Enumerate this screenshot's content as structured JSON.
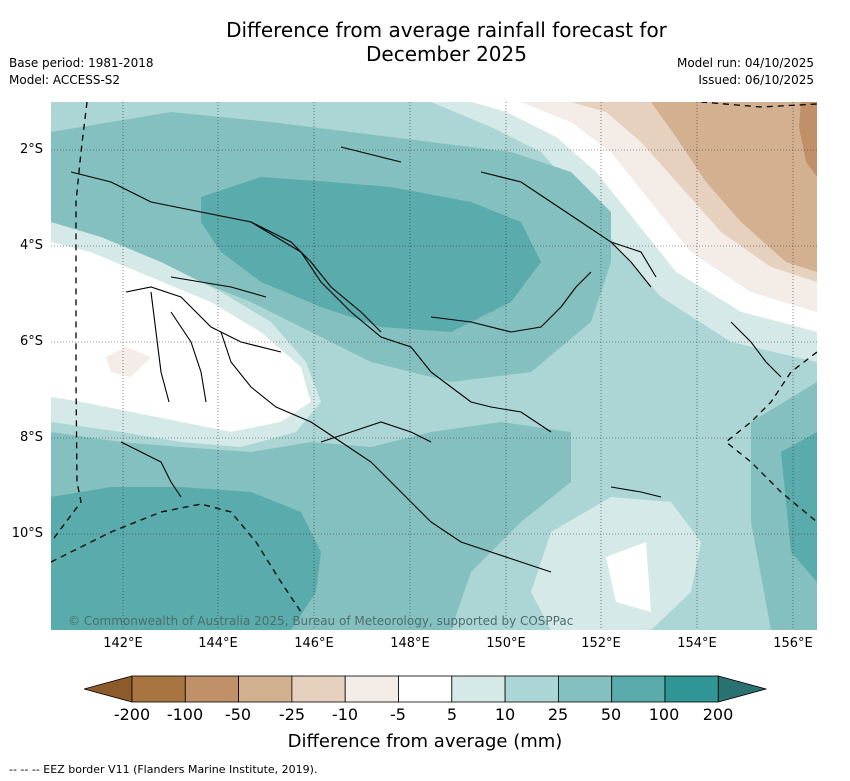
{
  "title_line1": "Difference from average rainfall forecast for",
  "title_line2": "December 2025",
  "meta_left": {
    "base_period": "Base period: 1981-2018",
    "model": "Model: ACCESS-S2"
  },
  "meta_right": {
    "model_run": "Model run: 04/10/2025",
    "issued": "Issued: 06/10/2025"
  },
  "lat_labels": [
    "2°S",
    "4°S",
    "6°S",
    "8°S",
    "10°S"
  ],
  "lon_labels": [
    "142°E",
    "144°E",
    "146°E",
    "148°E",
    "150°E",
    "152°E",
    "154°E",
    "156°E"
  ],
  "copyright": "© Commonwealth of Australia 2025, Bureau of Meteorology, supported by COSPPac",
  "colorbar": {
    "title": "Difference from average (mm)",
    "labels": [
      "-200",
      "-100",
      "-50",
      "-25",
      "-10",
      "-5",
      "5",
      "10",
      "25",
      "50",
      "100",
      "200"
    ],
    "colors": [
      "#8c5a2b",
      "#a87440",
      "#c09168",
      "#d3b090",
      "#e6d1bf",
      "#f3ece7",
      "#ffffff",
      "#d5e9e8",
      "#acd6d5",
      "#85c0c0",
      "#5aabab",
      "#2f9695",
      "#2a7271"
    ]
  },
  "footnote": "-- -- -- EEZ border V11 (Flanders Marine Institute, 2019).",
  "legend_colors": {
    "dry_dark": "#c09168",
    "dry_mid": "#d3b090",
    "dry_light": "#e6d1bf",
    "neutral": "#ffffff",
    "wet_10": "#d5e9e8",
    "wet_25": "#acd6d5",
    "wet_50": "#85c0c0",
    "wet_100": "#5aabab"
  }
}
